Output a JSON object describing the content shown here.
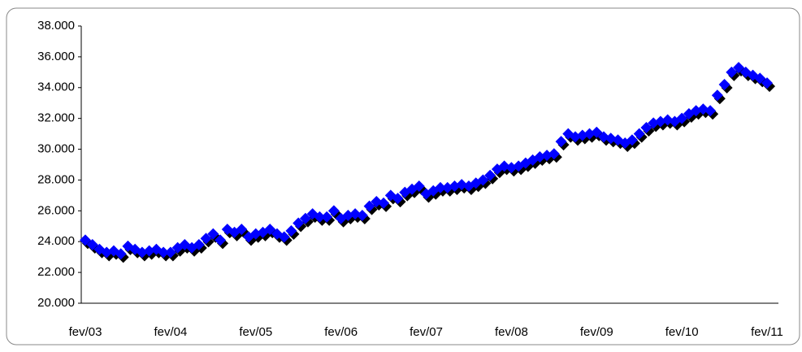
{
  "chart_data": {
    "type": "scatter",
    "categories": [
      "fev/03",
      null,
      null,
      null,
      null,
      null,
      null,
      null,
      null,
      null,
      null,
      null,
      "fev/04",
      null,
      null,
      null,
      null,
      null,
      null,
      null,
      null,
      null,
      null,
      null,
      "fev/05",
      null,
      null,
      null,
      null,
      null,
      null,
      null,
      null,
      null,
      null,
      null,
      "fev/06",
      null,
      null,
      null,
      null,
      null,
      null,
      null,
      null,
      null,
      null,
      null,
      "fev/07",
      null,
      null,
      null,
      null,
      null,
      null,
      null,
      null,
      null,
      null,
      null,
      "fev/08",
      null,
      null,
      null,
      null,
      null,
      null,
      null,
      null,
      null,
      null,
      null,
      "fev/09",
      null,
      null,
      null,
      null,
      null,
      null,
      null,
      null,
      null,
      null,
      null,
      "fev/10",
      null,
      null,
      null,
      null,
      null,
      null,
      null,
      null,
      null,
      null,
      null,
      "fev/11"
    ],
    "values": [
      24100,
      23800,
      23500,
      23300,
      23400,
      23200,
      23700,
      23500,
      23300,
      23400,
      23500,
      23300,
      23300,
      23600,
      23800,
      23600,
      23800,
      24200,
      24500,
      24100,
      24800,
      24600,
      24800,
      24300,
      24500,
      24600,
      24800,
      24500,
      24300,
      24700,
      25200,
      25500,
      25800,
      25600,
      25600,
      26000,
      25500,
      25700,
      25800,
      25700,
      26300,
      26600,
      26500,
      27000,
      26800,
      27200,
      27400,
      27600,
      27100,
      27300,
      27500,
      27500,
      27600,
      27700,
      27600,
      27800,
      28000,
      28300,
      28700,
      28900,
      28800,
      28900,
      29100,
      29300,
      29500,
      29600,
      29700,
      30500,
      31000,
      30800,
      30900,
      31000,
      31100,
      30800,
      30700,
      30600,
      30400,
      30600,
      31000,
      31400,
      31700,
      31800,
      31900,
      31800,
      32000,
      32300,
      32500,
      32600,
      32500,
      33500,
      34200,
      35000,
      35300,
      35000,
      34800,
      34600,
      34300
    ],
    "color": "#0000ff",
    "ylim": [
      20000,
      38000
    ],
    "yticks": [
      {
        "value": 20000,
        "label": "20.000"
      },
      {
        "value": 22000,
        "label": "22.000"
      },
      {
        "value": 24000,
        "label": "24.000"
      },
      {
        "value": 26000,
        "label": "26.000"
      },
      {
        "value": 28000,
        "label": "28.000"
      },
      {
        "value": 30000,
        "label": "30.000"
      },
      {
        "value": 32000,
        "label": "32.000"
      },
      {
        "value": 34000,
        "label": "34.000"
      },
      {
        "value": 36000,
        "label": "36.000"
      },
      {
        "value": 38000,
        "label": "38.000"
      }
    ]
  }
}
